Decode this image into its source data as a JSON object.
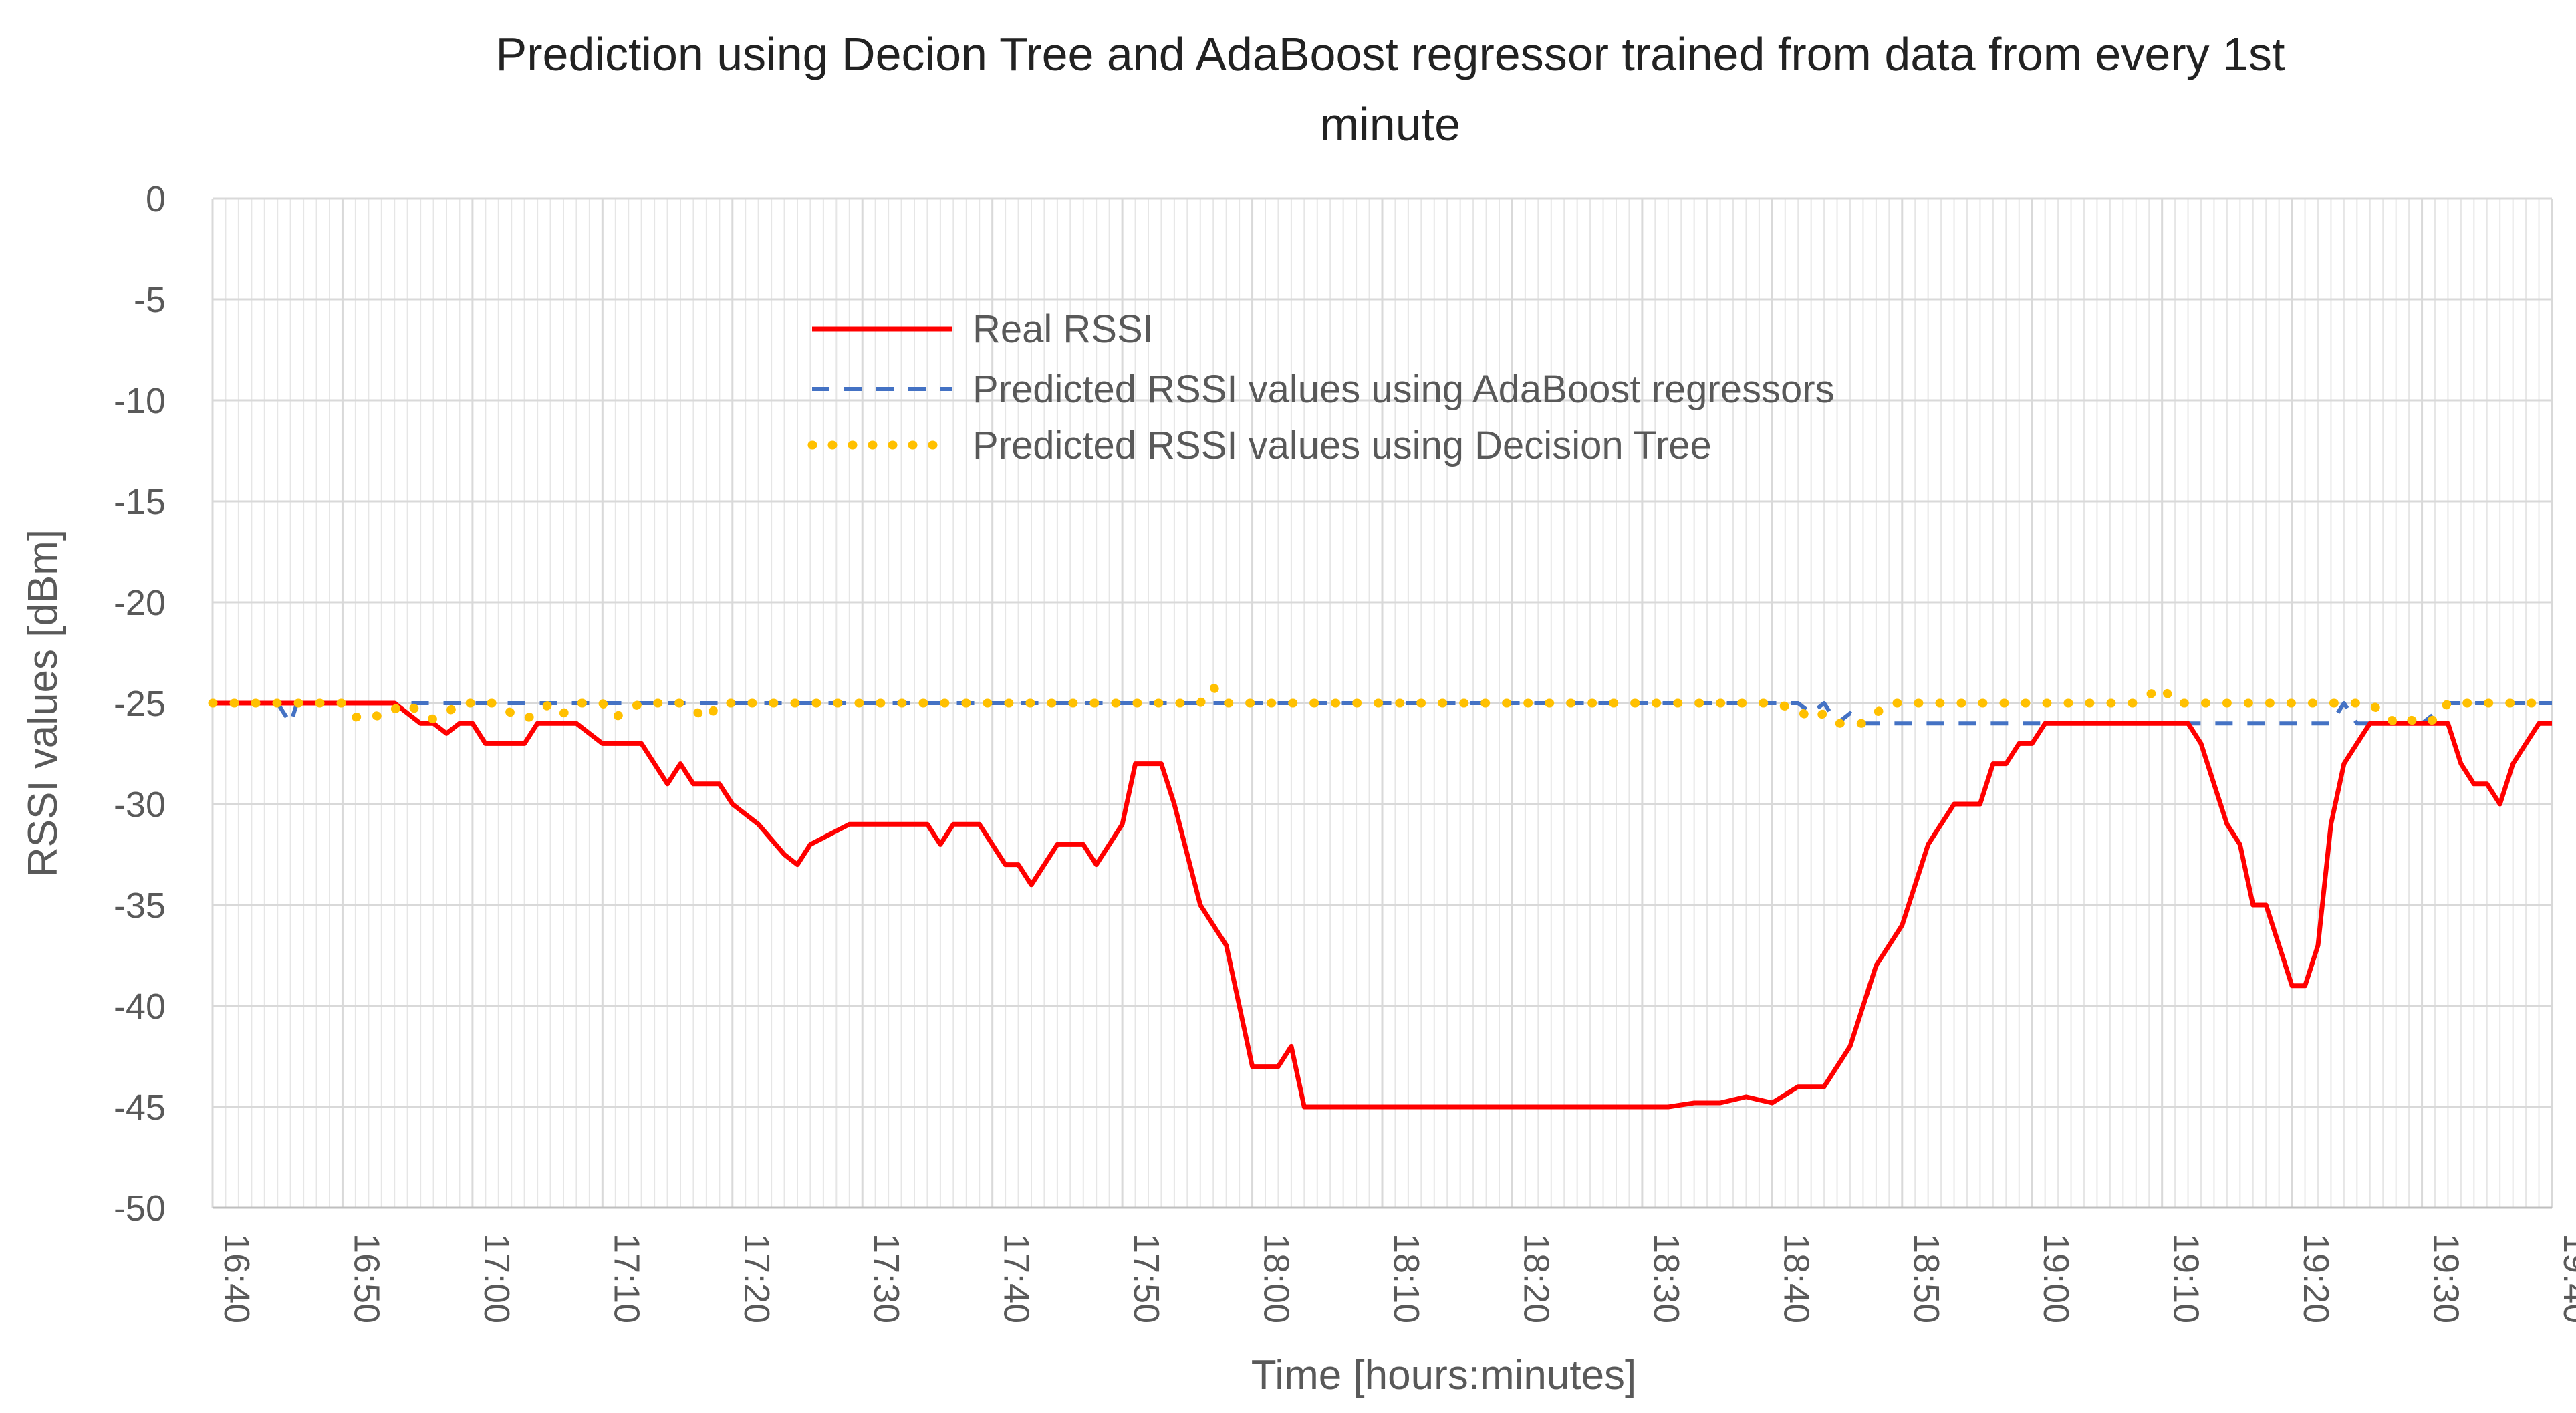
{
  "chart_data": {
    "type": "line",
    "title_line1": "Prediction using Decion Tree and AdaBoost regressor trained from data from every 1st",
    "title_line2": "minute",
    "xlabel": "Time [hours:minutes]",
    "ylabel": "RSSI values [dBm]",
    "xlim": [
      0,
      180
    ],
    "ylim": [
      -50,
      0
    ],
    "x_ticks": [
      0,
      10,
      20,
      30,
      40,
      50,
      60,
      70,
      80,
      90,
      100,
      110,
      120,
      130,
      140,
      150,
      160,
      170,
      180
    ],
    "x_tick_labels": [
      "16:40",
      "16:50",
      "17:00",
      "17:10",
      "17:20",
      "17:30",
      "17:40",
      "17:50",
      "18:00",
      "18:10",
      "18:20",
      "18:30",
      "18:40",
      "18:50",
      "19:00",
      "19:10",
      "19:20",
      "19:30",
      "19:40"
    ],
    "y_ticks": [
      0,
      -5,
      -10,
      -15,
      -20,
      -25,
      -30,
      -35,
      -40,
      -45,
      -50
    ],
    "y_tick_labels": [
      "0",
      "-5",
      "-10",
      "-15",
      "-20",
      "-25",
      "-30",
      "-35",
      "-40",
      "-45",
      "-50"
    ],
    "grid": "minor vertical gridlines every minute, horizontal gridlines every 5",
    "legend_position": "upper-center",
    "series": [
      {
        "name": "Real RSSI",
        "color": "#ff0000",
        "style": "solid",
        "x": [
          0,
          8,
          14,
          15,
          16,
          17,
          18,
          19,
          20,
          21,
          22,
          24,
          25,
          26,
          28,
          30,
          31,
          33,
          35,
          36,
          37,
          38,
          39,
          40,
          42,
          44,
          45,
          46,
          49,
          51,
          53,
          55,
          56,
          57,
          59,
          61,
          62,
          63,
          65,
          67,
          68,
          69,
          70,
          71,
          72,
          73,
          74,
          76,
          78,
          80,
          82,
          83,
          84,
          85,
          86,
          87,
          88,
          89,
          90,
          91,
          92,
          93,
          94,
          96,
          98,
          100,
          101,
          102,
          103,
          105,
          107,
          110,
          112,
          114,
          116,
          118,
          120,
          122,
          124,
          126,
          128,
          130,
          132,
          134,
          136,
          137,
          138,
          139,
          140,
          141,
          142,
          143,
          144,
          145,
          146,
          147,
          148,
          149,
          150,
          151,
          152,
          153,
          154,
          155,
          156,
          157,
          158,
          159,
          160,
          161,
          162,
          163,
          164,
          165,
          166,
          167,
          168,
          169,
          170,
          171,
          172,
          173,
          174,
          175,
          176,
          177,
          178,
          179,
          180
        ],
        "values": [
          -25,
          -25,
          -25,
          -25.5,
          -26,
          -26,
          -26.5,
          -26,
          -26,
          -27,
          -27,
          -27,
          -26,
          -26,
          -26,
          -27,
          -27,
          -27,
          -29,
          -28,
          -29,
          -29,
          -29,
          -30,
          -31,
          -32.5,
          -33,
          -32,
          -31,
          -31,
          -31,
          -31,
          -32,
          -31,
          -31,
          -33,
          -33,
          -34,
          -32,
          -32,
          -33,
          -32,
          -31,
          -28,
          -28,
          -28,
          -30,
          -35,
          -37,
          -43,
          -43,
          -42,
          -45,
          -45,
          -45,
          -45,
          -45,
          -45,
          -45,
          -45,
          -45,
          -45,
          -45,
          -45,
          -45,
          -45,
          -45,
          -45,
          -45,
          -45,
          -45,
          -45,
          -45,
          -44.8,
          -44.8,
          -44.5,
          -44.8,
          -44,
          -44,
          -42,
          -38,
          -36,
          -32,
          -30,
          -30,
          -28,
          -28,
          -27,
          -27,
          -26,
          -26,
          -26,
          -26,
          -26,
          -26,
          -26,
          -26,
          -26,
          -26,
          -26,
          -26,
          -27,
          -29,
          -31,
          -32,
          -35,
          -35,
          -37,
          -39,
          -39,
          -37,
          -31,
          -28,
          -27,
          -26,
          -26,
          -26,
          -26,
          -26,
          -26,
          -26,
          -28,
          -29,
          -29,
          -30,
          -28,
          -27,
          -26,
          -26
        ]
      },
      {
        "name": "Predicted RSSI values using AdaBoost regressors",
        "color": "#4472c4",
        "style": "dashed",
        "x": [
          0,
          5,
          6,
          6.5,
          7,
          20,
          120,
          122,
          123,
          124,
          125,
          126,
          127,
          128,
          150,
          163,
          164,
          165,
          166,
          167,
          168,
          169,
          170,
          172,
          174,
          180
        ],
        "values": [
          -25,
          -25,
          -26,
          -25,
          -25,
          -25,
          -25,
          -25,
          -25.5,
          -25,
          -26,
          -25.5,
          -26,
          -26,
          -26,
          -26,
          -25,
          -26,
          -26,
          -26,
          -26,
          -26,
          -26,
          -25,
          -25,
          -25
        ]
      },
      {
        "name": "Predicted RSSI values using Decision Tree",
        "color": "#ffc000",
        "style": "dotted",
        "x": [
          0,
          2,
          4,
          6,
          8,
          10,
          11,
          12,
          13,
          14,
          15,
          16,
          17,
          18,
          19,
          20,
          21,
          22,
          23,
          24,
          25,
          26,
          27,
          28,
          29,
          30,
          31,
          32,
          33,
          34,
          35,
          36,
          37,
          38,
          39,
          40,
          42,
          44,
          46,
          48,
          50,
          52,
          54,
          56,
          58,
          60,
          62,
          64,
          66,
          68,
          70,
          72,
          74,
          76,
          77,
          78,
          80,
          82,
          84,
          86,
          88,
          90,
          92,
          94,
          96,
          98,
          100,
          102,
          104,
          106,
          108,
          110,
          112,
          114,
          116,
          118,
          120,
          122,
          123,
          124,
          125,
          126,
          127,
          128,
          129,
          130,
          132,
          134,
          136,
          138,
          140,
          142,
          144,
          146,
          148,
          150,
          151,
          152,
          154,
          156,
          158,
          160,
          162,
          164,
          166,
          168,
          169,
          170,
          171,
          172,
          174,
          176,
          178,
          180
        ],
        "values": [
          -25,
          -25,
          -25,
          -25,
          -25,
          -25,
          -25.7,
          -25.5,
          -25.7,
          -25.3,
          -25,
          -25.5,
          -25.8,
          -25.5,
          -25,
          -25,
          -25,
          -25,
          -25.5,
          -25.8,
          -25.5,
          -25,
          -25.5,
          -25,
          -25,
          -25,
          -25.7,
          -25.3,
          -25,
          -25,
          -25,
          -25,
          -25.3,
          -25.8,
          -25,
          -25,
          -25,
          -25,
          -25,
          -25,
          -25,
          -25,
          -25,
          -25,
          -25,
          -25,
          -25,
          -25,
          -25,
          -25,
          -25,
          -25,
          -25,
          -25,
          -24.2,
          -25,
          -25,
          -25,
          -25,
          -25,
          -25,
          -25,
          -25,
          -25,
          -25,
          -25,
          -25,
          -25,
          -25,
          -25,
          -25,
          -25,
          -25,
          -25,
          -25,
          -25,
          -25,
          -25.3,
          -25.8,
          -25.5,
          -26,
          -26,
          -26,
          -25.5,
          -25,
          -25,
          -25,
          -25,
          -25,
          -25,
          -25,
          -25,
          -25,
          -25,
          -25,
          -24.2,
          -25,
          -25,
          -25,
          -25,
          -25,
          -25,
          -25,
          -25,
          -25,
          -26,
          -25.8,
          -26,
          -25.8,
          -25,
          -25,
          -25,
          -25,
          -25
        ]
      }
    ]
  }
}
